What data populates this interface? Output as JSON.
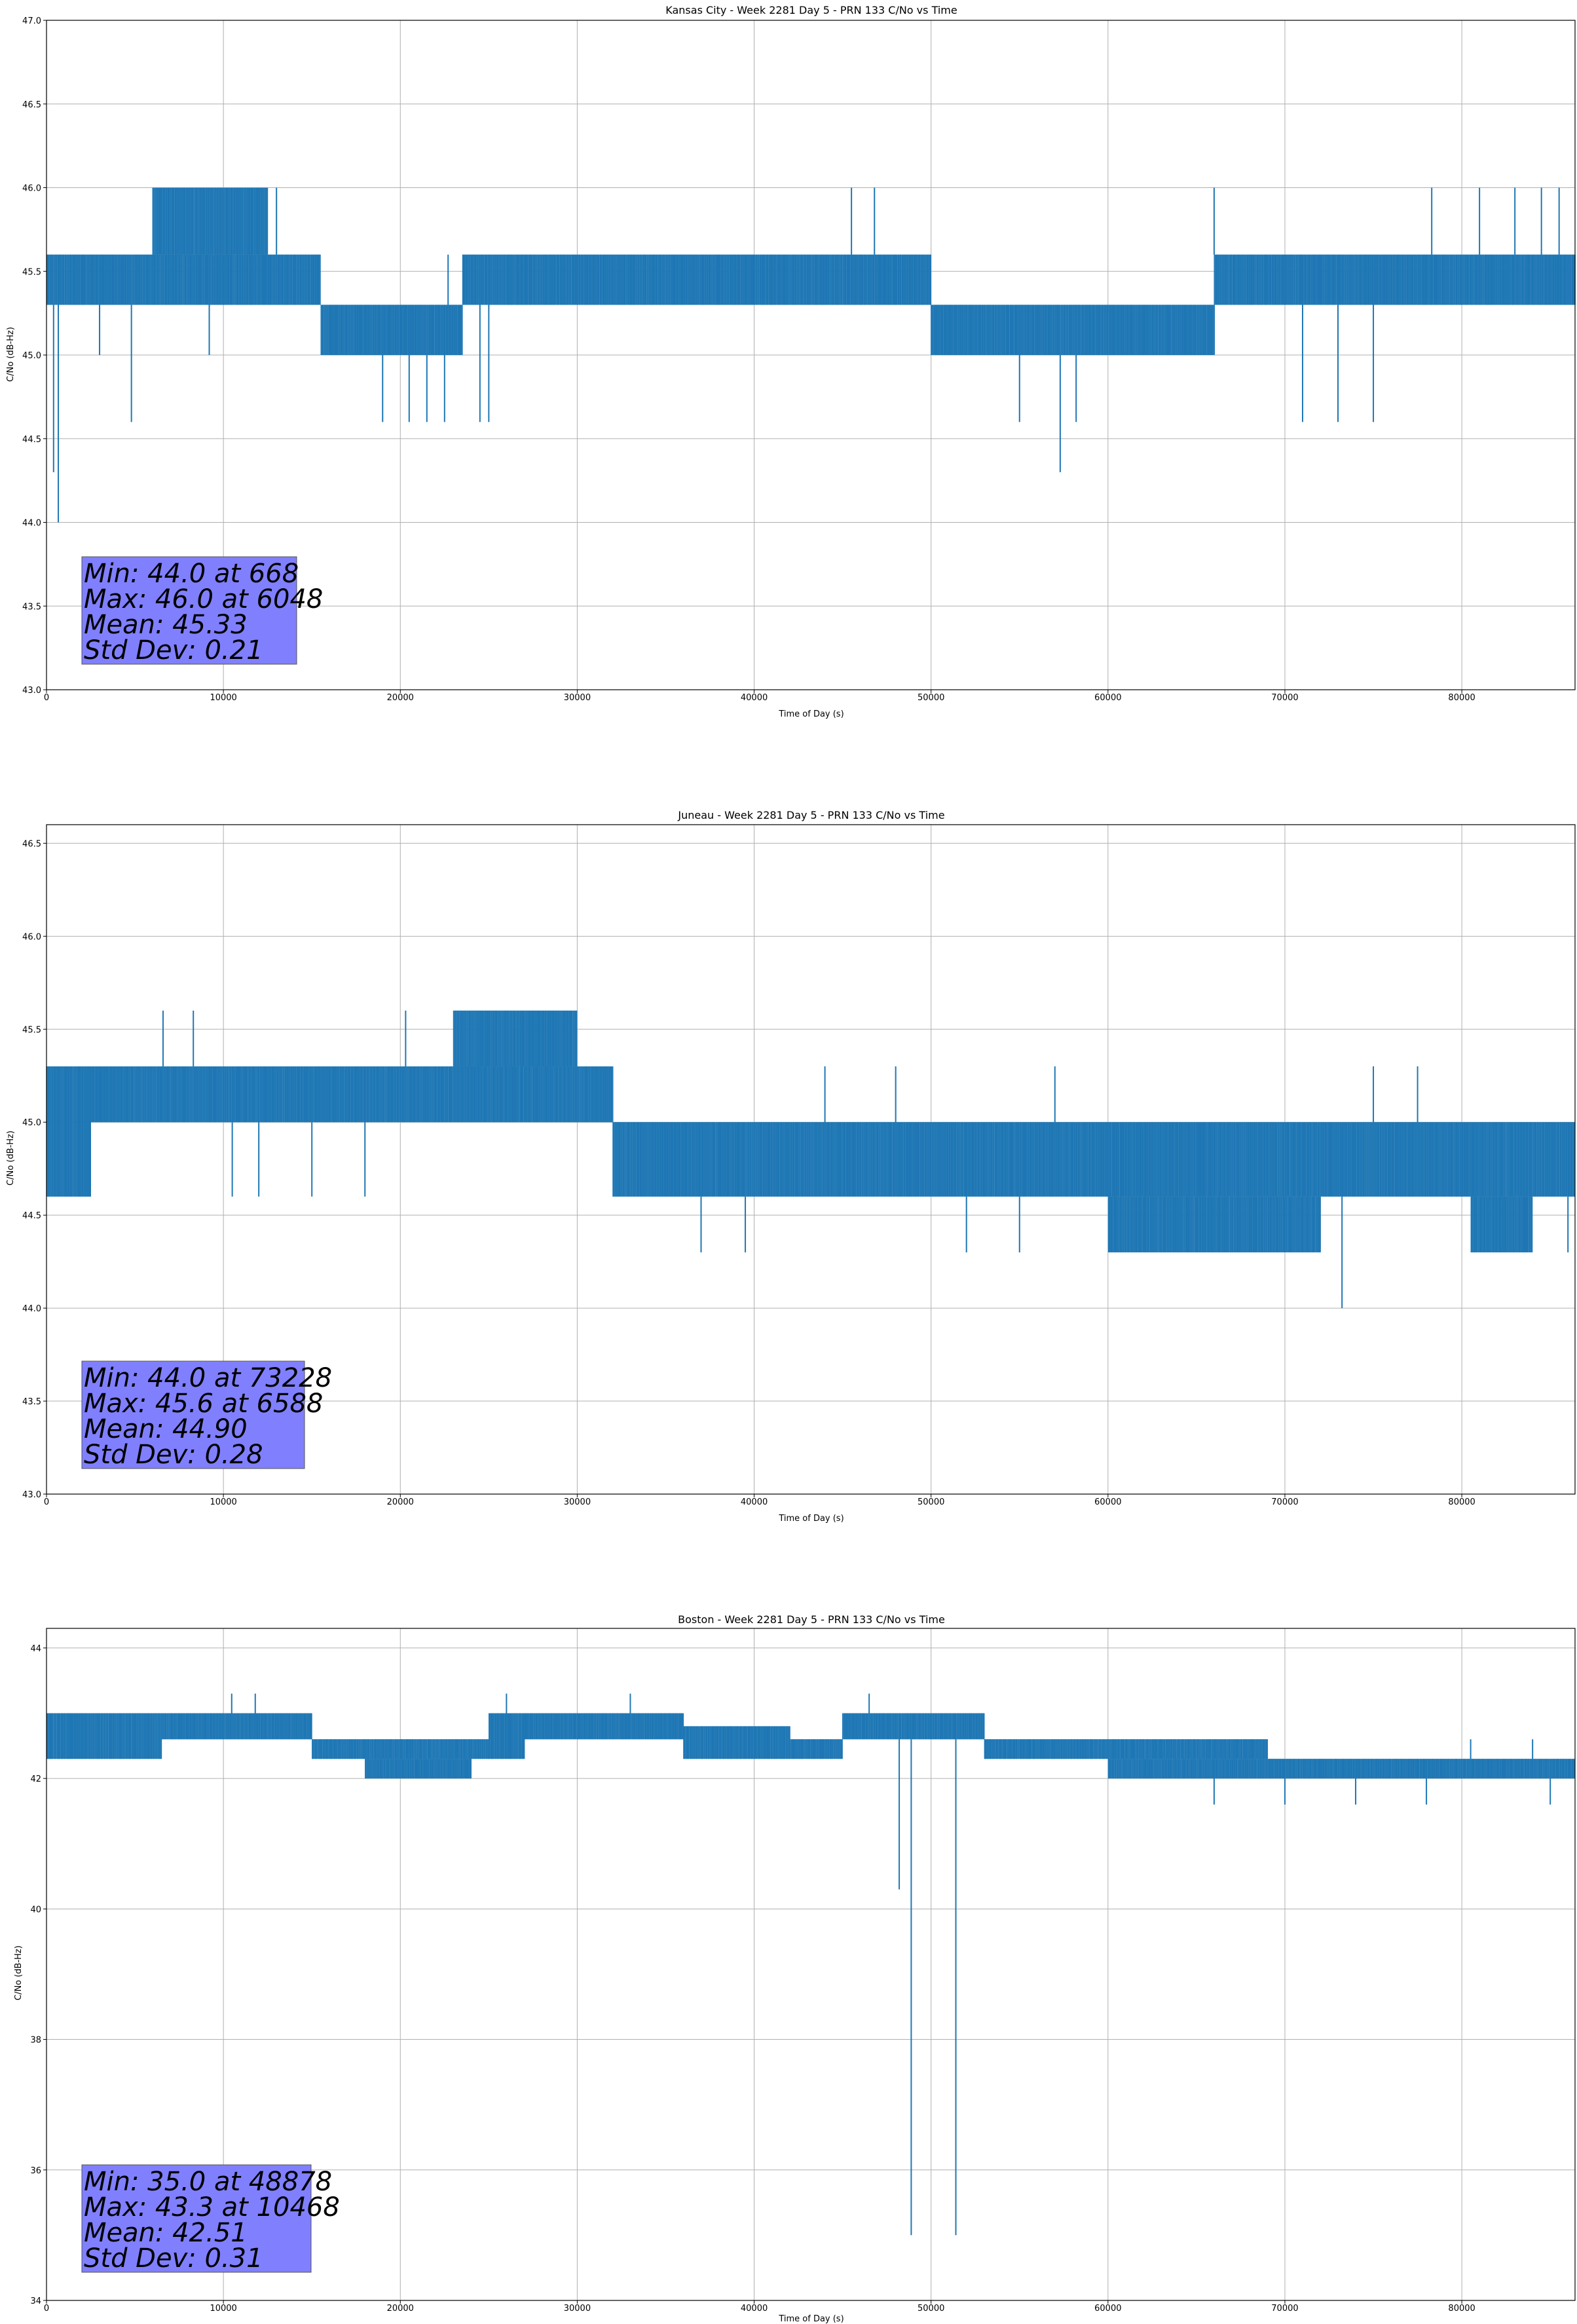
{
  "chart_data": [
    {
      "type": "line",
      "title": "Kansas City - Week 2281 Day 5 - PRN 133 C/No vs Time",
      "xlabel": "Time of Day (s)",
      "ylabel": "C/No (dB-Hz)",
      "xlim": [
        0,
        86400
      ],
      "ylim": [
        43.0,
        47.0
      ],
      "xticks": [
        0,
        10000,
        20000,
        30000,
        40000,
        50000,
        60000,
        70000,
        80000
      ],
      "yticks": [
        43.0,
        43.5,
        44.0,
        44.5,
        45.0,
        45.5,
        46.0,
        46.5,
        47.0
      ],
      "grid": true,
      "color": "#1f77b4",
      "quantization": 0.3,
      "segments": [
        {
          "x": [
            0,
            15500
          ],
          "range": [
            45.3,
            45.6
          ]
        },
        {
          "x": [
            6000,
            12500
          ],
          "range": [
            45.6,
            46.0
          ]
        },
        {
          "x": [
            15500,
            23500
          ],
          "range": [
            45.0,
            45.3
          ]
        },
        {
          "x": [
            23500,
            50000
          ],
          "range": [
            45.3,
            45.6
          ]
        },
        {
          "x": [
            50000,
            66000
          ],
          "range": [
            45.0,
            45.3
          ]
        },
        {
          "x": [
            66000,
            77500
          ],
          "range": [
            45.3,
            45.6
          ]
        },
        {
          "x": [
            77500,
            86400
          ],
          "range": [
            45.3,
            45.6
          ]
        }
      ],
      "spikes": [
        {
          "x": 400,
          "y": 44.3
        },
        {
          "x": 668,
          "y": 44.0
        },
        {
          "x": 3000,
          "y": 45.0
        },
        {
          "x": 4800,
          "y": 44.6
        },
        {
          "x": 9200,
          "y": 45.0
        },
        {
          "x": 13000,
          "y": 46.0
        },
        {
          "x": 19000,
          "y": 44.6
        },
        {
          "x": 20500,
          "y": 44.6
        },
        {
          "x": 21500,
          "y": 44.6
        },
        {
          "x": 22500,
          "y": 44.6
        },
        {
          "x": 24500,
          "y": 44.6
        },
        {
          "x": 25000,
          "y": 44.6
        },
        {
          "x": 22700,
          "y": 45.6
        },
        {
          "x": 45500,
          "y": 46.0
        },
        {
          "x": 46800,
          "y": 46.0
        },
        {
          "x": 55000,
          "y": 44.6
        },
        {
          "x": 57300,
          "y": 44.3
        },
        {
          "x": 58200,
          "y": 44.6
        },
        {
          "x": 66000,
          "y": 46.0
        },
        {
          "x": 71000,
          "y": 44.6
        },
        {
          "x": 73000,
          "y": 44.6
        },
        {
          "x": 75000,
          "y": 44.6
        },
        {
          "x": 78300,
          "y": 46.0
        },
        {
          "x": 81000,
          "y": 46.0
        },
        {
          "x": 83000,
          "y": 46.0
        },
        {
          "x": 84500,
          "y": 46.0
        },
        {
          "x": 85500,
          "y": 46.0
        }
      ],
      "stats": {
        "min": "Min: 44.0 at 668",
        "max": "Max: 46.0 at 6048",
        "mean": "Mean: 45.33",
        "std": "Std Dev: 0.21"
      }
    },
    {
      "type": "line",
      "title": "Juneau - Week 2281 Day 5 - PRN 133 C/No vs Time",
      "xlabel": "Time of Day (s)",
      "ylabel": "C/No (dB-Hz)",
      "xlim": [
        0,
        86400
      ],
      "ylim": [
        43.0,
        46.6
      ],
      "xticks": [
        0,
        10000,
        20000,
        30000,
        40000,
        50000,
        60000,
        70000,
        80000
      ],
      "yticks": [
        43.0,
        43.5,
        44.0,
        44.5,
        45.0,
        45.5,
        46.0,
        46.5
      ],
      "grid": true,
      "color": "#1f77b4",
      "quantization": 0.3,
      "segments": [
        {
          "x": [
            0,
            2500
          ],
          "range": [
            44.6,
            45.3
          ]
        },
        {
          "x": [
            2500,
            32000
          ],
          "range": [
            45.0,
            45.3
          ]
        },
        {
          "x": [
            23000,
            30000
          ],
          "range": [
            45.3,
            45.6
          ]
        },
        {
          "x": [
            32000,
            86400
          ],
          "range": [
            44.6,
            45.0
          ]
        },
        {
          "x": [
            60000,
            72000
          ],
          "range": [
            44.3,
            44.6
          ]
        },
        {
          "x": [
            80500,
            84000
          ],
          "range": [
            44.3,
            44.6
          ]
        }
      ],
      "spikes": [
        {
          "x": 6588,
          "y": 45.6
        },
        {
          "x": 8300,
          "y": 45.6
        },
        {
          "x": 10500,
          "y": 44.6
        },
        {
          "x": 12000,
          "y": 44.6
        },
        {
          "x": 15000,
          "y": 44.6
        },
        {
          "x": 18000,
          "y": 44.6
        },
        {
          "x": 20300,
          "y": 45.6
        },
        {
          "x": 37000,
          "y": 44.3
        },
        {
          "x": 39500,
          "y": 44.3
        },
        {
          "x": 44000,
          "y": 45.3
        },
        {
          "x": 48000,
          "y": 45.3
        },
        {
          "x": 52000,
          "y": 44.3
        },
        {
          "x": 55000,
          "y": 44.3
        },
        {
          "x": 57000,
          "y": 45.3
        },
        {
          "x": 73228,
          "y": 44.0
        },
        {
          "x": 75000,
          "y": 45.3
        },
        {
          "x": 77500,
          "y": 45.3
        },
        {
          "x": 86000,
          "y": 44.3
        }
      ],
      "stats": {
        "min": "Min: 44.0 at 73228",
        "max": "Max: 45.6 at 6588",
        "mean": "Mean: 44.90",
        "std": "Std Dev: 0.28"
      }
    },
    {
      "type": "line",
      "title": "Boston - Week 2281 Day 5 - PRN 133 C/No vs Time",
      "xlabel": "Time of Day (s)",
      "ylabel": "C/No (dB-Hz)",
      "xlim": [
        0,
        86400
      ],
      "ylim": [
        34.0,
        44.3
      ],
      "xticks": [
        0,
        10000,
        20000,
        30000,
        40000,
        50000,
        60000,
        70000,
        80000
      ],
      "yticks": [
        34,
        36,
        38,
        40,
        42,
        44
      ],
      "grid": true,
      "color": "#1f77b4",
      "quantization": 0.3,
      "segments": [
        {
          "x": [
            0,
            6500
          ],
          "range": [
            42.3,
            43.0
          ]
        },
        {
          "x": [
            6500,
            15000
          ],
          "range": [
            42.6,
            43.0
          ]
        },
        {
          "x": [
            15000,
            25000
          ],
          "range": [
            42.3,
            42.6
          ]
        },
        {
          "x": [
            18000,
            24000
          ],
          "range": [
            42.0,
            42.3
          ]
        },
        {
          "x": [
            25000,
            27000
          ],
          "range": [
            42.3,
            43.0
          ]
        },
        {
          "x": [
            27000,
            36000
          ],
          "range": [
            42.6,
            43.0
          ]
        },
        {
          "x": [
            36000,
            42000
          ],
          "range": [
            42.3,
            42.8
          ]
        },
        {
          "x": [
            42000,
            45000
          ],
          "range": [
            42.3,
            42.6
          ]
        },
        {
          "x": [
            45000,
            53000
          ],
          "range": [
            42.6,
            43.0
          ]
        },
        {
          "x": [
            53000,
            69000
          ],
          "range": [
            42.3,
            42.6
          ]
        },
        {
          "x": [
            60000,
            69000
          ],
          "range": [
            42.0,
            42.3
          ]
        },
        {
          "x": [
            69000,
            86400
          ],
          "range": [
            42.0,
            42.3
          ]
        }
      ],
      "spikes": [
        {
          "x": 10468,
          "y": 43.3
        },
        {
          "x": 11800,
          "y": 43.3
        },
        {
          "x": 26000,
          "y": 43.3
        },
        {
          "x": 33000,
          "y": 43.3
        },
        {
          "x": 46500,
          "y": 43.3
        },
        {
          "x": 48200,
          "y": 40.3
        },
        {
          "x": 48878,
          "y": 35.0
        },
        {
          "x": 51400,
          "y": 35.0
        },
        {
          "x": 66000,
          "y": 41.6
        },
        {
          "x": 70000,
          "y": 41.6
        },
        {
          "x": 74000,
          "y": 41.6
        },
        {
          "x": 78000,
          "y": 41.6
        },
        {
          "x": 85000,
          "y": 41.6
        },
        {
          "x": 80500,
          "y": 42.6
        },
        {
          "x": 84000,
          "y": 42.6
        }
      ],
      "stats": {
        "min": "Min: 35.0 at 48878",
        "max": "Max: 43.3 at 10468",
        "mean": "Mean: 42.51",
        "std": "Std Dev: 0.31"
      }
    }
  ]
}
